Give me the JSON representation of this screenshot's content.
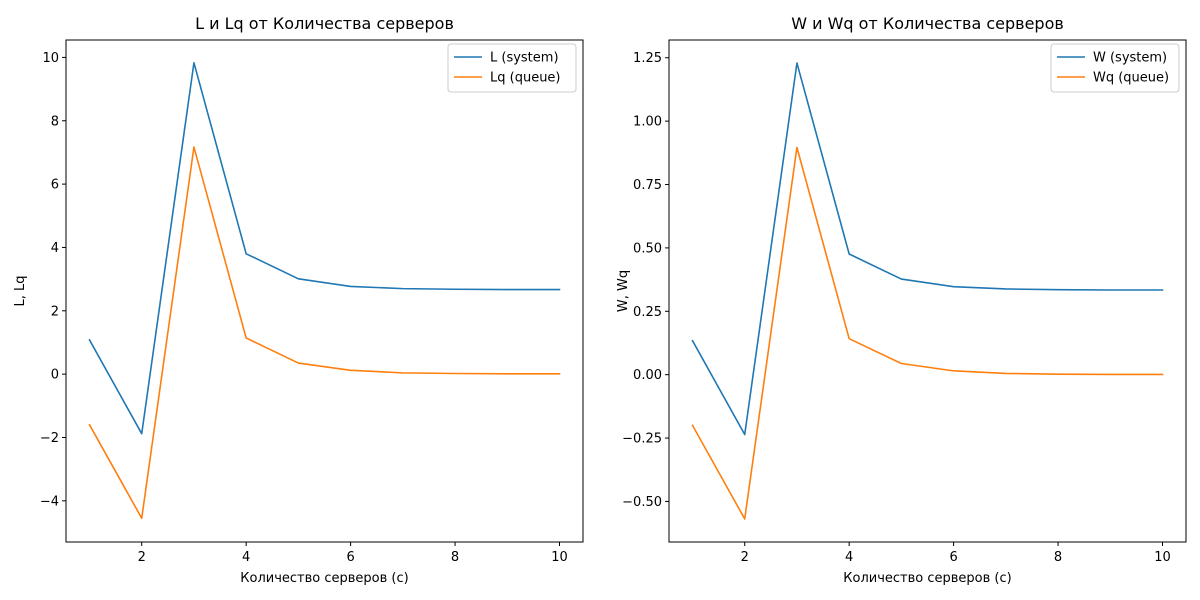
{
  "figure": {
    "background": "#ffffff"
  },
  "chart_data": [
    {
      "type": "line",
      "title": "L и Lq от Количества серверов",
      "xlabel": "Количество серверов (c)",
      "ylabel": "L, Lq",
      "x": [
        1,
        2,
        3,
        4,
        5,
        6,
        7,
        8,
        9,
        10
      ],
      "xlim": [
        0.55,
        10.45
      ],
      "ylim": [
        -5.3,
        10.55
      ],
      "xticks": [
        2,
        4,
        6,
        8,
        10
      ],
      "xtick_labels": [
        "2",
        "4",
        "6",
        "8",
        "10"
      ],
      "yticks": [
        -4,
        -2,
        0,
        2,
        4,
        6,
        8,
        10
      ],
      "ytick_labels": [
        "−4",
        "−2",
        "0",
        "2",
        "4",
        "6",
        "8",
        "10"
      ],
      "grid": false,
      "legend_position": "top-right",
      "series": [
        {
          "name": "L (system)",
          "color": "#1f77b4",
          "values": [
            1.08,
            -1.88,
            9.83,
            3.8,
            3.01,
            2.77,
            2.7,
            2.68,
            2.67,
            2.67
          ]
        },
        {
          "name": "Lq (queue)",
          "color": "#ff7f0e",
          "values": [
            -1.6,
            -4.55,
            7.17,
            1.14,
            0.35,
            0.12,
            0.04,
            0.02,
            0.01,
            0.01
          ]
        }
      ]
    },
    {
      "type": "line",
      "title": "W и Wq от Количества серверов",
      "xlabel": "Количество серверов (c)",
      "ylabel": "W, Wq",
      "x": [
        1,
        2,
        3,
        4,
        5,
        6,
        7,
        8,
        9,
        10
      ],
      "xlim": [
        0.55,
        10.45
      ],
      "ylim": [
        -0.66,
        1.32
      ],
      "xticks": [
        2,
        4,
        6,
        8,
        10
      ],
      "xtick_labels": [
        "2",
        "4",
        "6",
        "8",
        "10"
      ],
      "yticks": [
        -0.5,
        -0.25,
        0,
        0.25,
        0.5,
        0.75,
        1.0,
        1.25
      ],
      "ytick_labels": [
        "−0.50",
        "−0.25",
        "0.00",
        "0.25",
        "0.50",
        "0.75",
        "1.00",
        "1.25"
      ],
      "grid": false,
      "legend_position": "top-right",
      "series": [
        {
          "name": "W (system)",
          "color": "#1f77b4",
          "values": [
            0.134,
            -0.236,
            1.229,
            0.476,
            0.377,
            0.347,
            0.338,
            0.335,
            0.334,
            0.334
          ]
        },
        {
          "name": "Wq (queue)",
          "color": "#ff7f0e",
          "values": [
            -0.2,
            -0.569,
            0.896,
            0.142,
            0.044,
            0.015,
            0.005,
            0.002,
            0.001,
            0.001
          ]
        }
      ]
    }
  ]
}
